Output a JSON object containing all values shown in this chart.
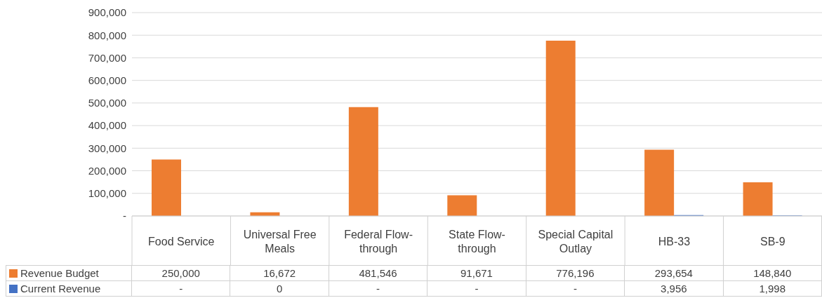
{
  "chart_data": {
    "type": "bar",
    "categories": [
      "Food Service",
      "Universal Free Meals",
      "Federal Flow-through",
      "State Flow-through",
      "Special Capital Outlay",
      "HB-33",
      "SB-9"
    ],
    "series": [
      {
        "name": "Revenue Budget",
        "color": "#ed7d31",
        "values": [
          250000,
          16672,
          481546,
          91671,
          776196,
          293654,
          148840
        ],
        "value_labels": [
          "250,000",
          "16,672",
          "481,546",
          "91,671",
          "776,196",
          "293,654",
          "148,840"
        ]
      },
      {
        "name": "Current Revenue",
        "color": "#4472c4",
        "values": [
          null,
          0,
          null,
          null,
          null,
          3956,
          1998
        ],
        "value_labels": [
          "-",
          "0",
          "-",
          "-",
          "-",
          "3,956",
          "1,998"
        ]
      }
    ],
    "ylim": [
      0,
      900000
    ],
    "yticks": [
      {
        "value": 0,
        "label": "-"
      },
      {
        "value": 100000,
        "label": "100,000"
      },
      {
        "value": 200000,
        "label": "200,000"
      },
      {
        "value": 300000,
        "label": "300,000"
      },
      {
        "value": 400000,
        "label": "400,000"
      },
      {
        "value": 500000,
        "label": "500,000"
      },
      {
        "value": 600000,
        "label": "600,000"
      },
      {
        "value": 700000,
        "label": "700,000"
      },
      {
        "value": 800000,
        "label": "800,000"
      },
      {
        "value": 900000,
        "label": "900,000"
      }
    ],
    "grid": "y",
    "legend": "bottom"
  }
}
